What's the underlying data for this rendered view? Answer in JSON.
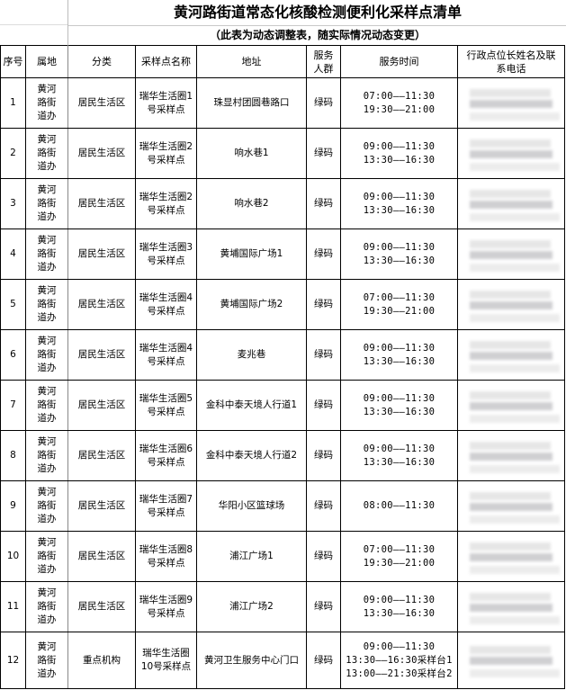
{
  "title": "黄河路街道常态化核酸检测便利化采样点清单",
  "subtitle": "（此表为动态调整表，随实际情况动态变更）",
  "headers": [
    "序号",
    "属地",
    "分类",
    "采样点名称",
    "地址",
    "服务人群",
    "服务时间",
    "行政点位长姓名及联系电话"
  ],
  "contact_blurred": true,
  "rows": [
    {
      "no": "1",
      "area": "黄河路街道办",
      "category": "居民生活区",
      "site": "瑞华生活圈1号采样点",
      "address": "珠显村团圆巷路口",
      "group": "绿码",
      "time": [
        "07:00——11:30",
        "19:30——21:00"
      ]
    },
    {
      "no": "2",
      "area": "黄河路街道办",
      "category": "居民生活区",
      "site": "瑞华生活圈2号采样点",
      "address": "响水巷1",
      "group": "绿码",
      "time": [
        "09:00——11:30",
        "13:30——16:30"
      ]
    },
    {
      "no": "3",
      "area": "黄河路街道办",
      "category": "居民生活区",
      "site": "瑞华生活圈2号采样点",
      "address": "响水巷2",
      "group": "绿码",
      "time": [
        "09:00——11:30",
        "13:30——16:30"
      ]
    },
    {
      "no": "4",
      "area": "黄河路街道办",
      "category": "居民生活区",
      "site": "瑞华生活圈3号采样点",
      "address": "黄埔国际广场1",
      "group": "绿码",
      "time": [
        "09:00——11:30",
        "13:30——16:30"
      ]
    },
    {
      "no": "5",
      "area": "黄河路街道办",
      "category": "居民生活区",
      "site": "瑞华生活圈4号采样点",
      "address": "黄埔国际广场2",
      "group": "绿码",
      "time": [
        "07:00——11:30",
        "19:30——21:00"
      ]
    },
    {
      "no": "6",
      "area": "黄河路街道办",
      "category": "居民生活区",
      "site": "瑞华生活圈4号采样点",
      "address": "麦兆巷",
      "group": "绿码",
      "time": [
        "09:00——11:30",
        "13:30——16:30"
      ]
    },
    {
      "no": "7",
      "area": "黄河路街道办",
      "category": "居民生活区",
      "site": "瑞华生活圈5号采样点",
      "address": "金科中泰天境人行道1",
      "group": "绿码",
      "time": [
        "09:00——11:30",
        "13:30——16:30"
      ]
    },
    {
      "no": "8",
      "area": "黄河路街道办",
      "category": "居民生活区",
      "site": "瑞华生活圈6号采样点",
      "address": "金科中泰天境人行道2",
      "group": "绿码",
      "time": [
        "09:00——11:30",
        "13:30——16:30"
      ]
    },
    {
      "no": "9",
      "area": "黄河路街道办",
      "category": "居民生活区",
      "site": "瑞华生活圈7号采样点",
      "address": "华阳小区篮球场",
      "group": "绿码",
      "time": [
        "08:00——11:30"
      ]
    },
    {
      "no": "10",
      "area": "黄河路街道办",
      "category": "居民生活区",
      "site": "瑞华生活圈8号采样点",
      "address": "浦江广场1",
      "group": "绿码",
      "time": [
        "07:00——11:30",
        "19:30——21:00"
      ]
    },
    {
      "no": "11",
      "area": "黄河路街道办",
      "category": "居民生活区",
      "site": "瑞华生活圈9号采样点",
      "address": "浦江广场2",
      "group": "绿码",
      "time": [
        "09:00——11:30",
        "13:30——16:30"
      ]
    },
    {
      "no": "12",
      "area": "黄河路街道办",
      "category": "重点机构",
      "site": "瑞华生活圈10号采样点",
      "address": "黄河卫生服务中心门口",
      "group": "绿码",
      "time": [
        "09:00——11:30",
        "13:30——16:30采样台1",
        "13:00——21:30采样台2"
      ]
    }
  ]
}
